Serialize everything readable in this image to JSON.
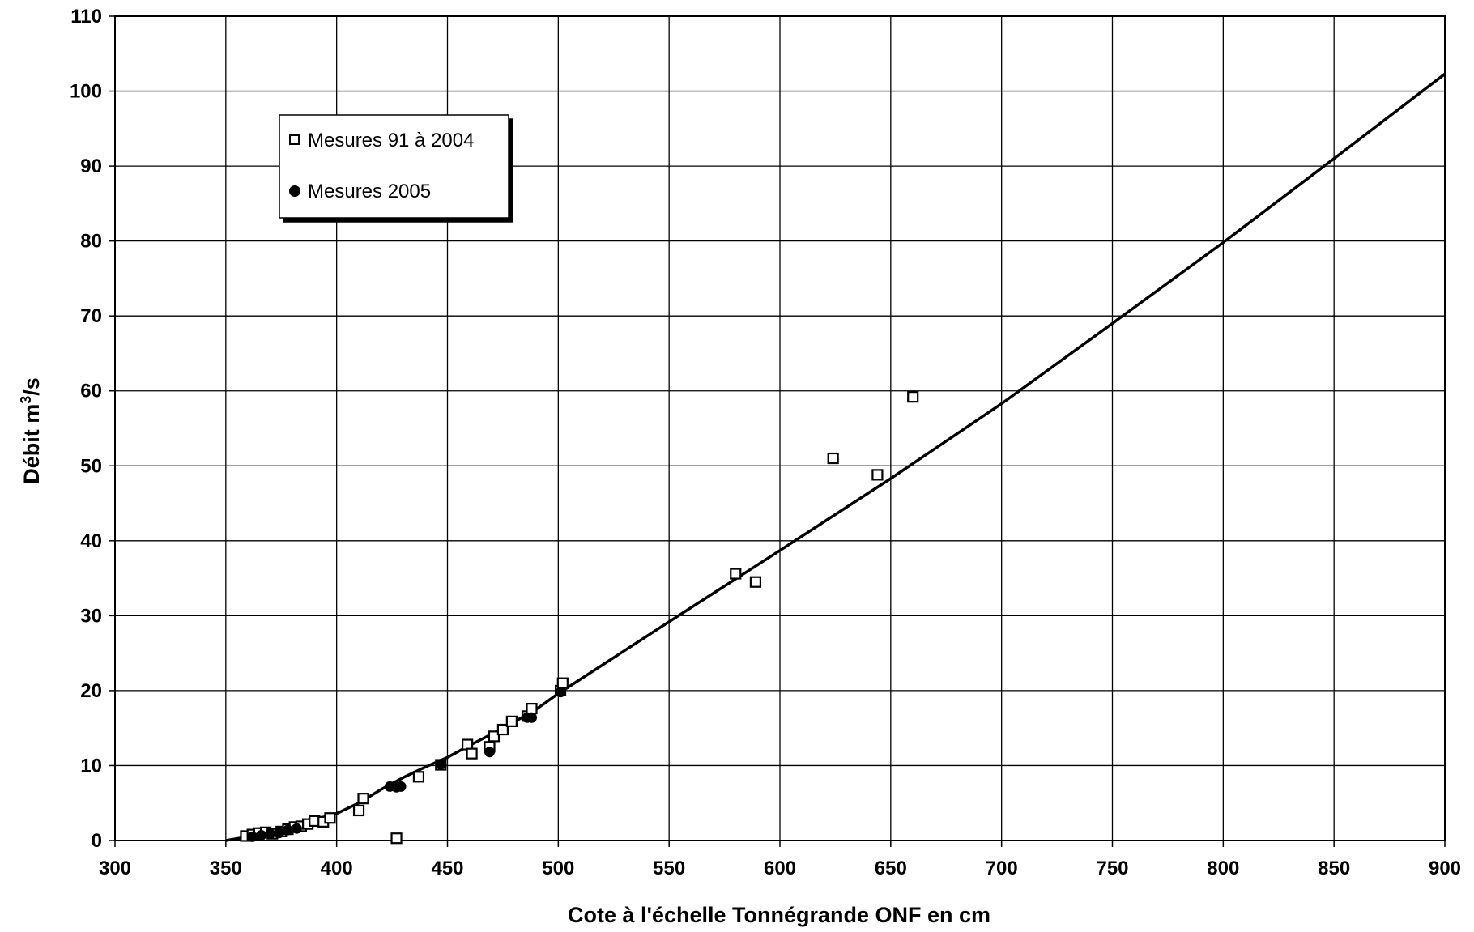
{
  "chart_data": {
    "type": "scatter",
    "title": "",
    "xlabel": "Cote à l'échelle Tonnégrande ONF en cm",
    "ylabel_main": "Débit m",
    "ylabel_sup": "3",
    "ylabel_tail": "/s",
    "xlim": [
      300,
      900
    ],
    "ylim": [
      0,
      110
    ],
    "x_ticks": [
      300,
      350,
      400,
      450,
      500,
      550,
      600,
      650,
      700,
      750,
      800,
      850,
      900
    ],
    "y_ticks": [
      0,
      10,
      20,
      30,
      40,
      50,
      60,
      70,
      80,
      90,
      100,
      110
    ],
    "grid": true,
    "legend_position": "top-left",
    "series": [
      {
        "name": "Mesures 91 à 2004",
        "marker": "open-square",
        "points": [
          [
            359,
            0.6
          ],
          [
            362,
            0.8
          ],
          [
            365,
            1.0
          ],
          [
            368,
            1.1
          ],
          [
            371,
            0.9
          ],
          [
            375,
            1.2
          ],
          [
            378,
            1.5
          ],
          [
            381,
            1.8
          ],
          [
            384,
            1.9
          ],
          [
            387,
            2.2
          ],
          [
            390,
            2.6
          ],
          [
            394,
            2.5
          ],
          [
            397,
            3.0
          ],
          [
            410,
            4.0
          ],
          [
            412,
            5.6
          ],
          [
            427,
            0.3
          ],
          [
            437,
            8.5
          ],
          [
            447,
            10.1
          ],
          [
            459,
            12.8
          ],
          [
            461,
            11.6
          ],
          [
            469,
            12.5
          ],
          [
            471,
            13.9
          ],
          [
            475,
            14.8
          ],
          [
            479,
            15.9
          ],
          [
            486,
            16.6
          ],
          [
            488,
            17.6
          ],
          [
            501,
            20.0
          ],
          [
            502,
            21.0
          ],
          [
            580,
            35.6
          ],
          [
            589,
            34.5
          ],
          [
            624,
            51.0
          ],
          [
            644,
            48.8
          ],
          [
            660,
            59.2
          ]
        ]
      },
      {
        "name": "Mesures 2005",
        "marker": "filled-circle",
        "points": [
          [
            362,
            0.5
          ],
          [
            366,
            0.7
          ],
          [
            370,
            0.9
          ],
          [
            374,
            1.0
          ],
          [
            378,
            1.4
          ],
          [
            382,
            1.6
          ],
          [
            424,
            7.2
          ],
          [
            427,
            7.1
          ],
          [
            429,
            7.2
          ],
          [
            447,
            10.2
          ],
          [
            469,
            11.8
          ],
          [
            486,
            16.4
          ],
          [
            488,
            16.4
          ],
          [
            501,
            19.8
          ]
        ]
      }
    ],
    "curve": {
      "name": "",
      "points": [
        [
          350,
          0
        ],
        [
          360,
          0.5
        ],
        [
          370,
          1.1
        ],
        [
          380,
          2.0
        ],
        [
          390,
          2.8
        ],
        [
          400,
          3.6
        ],
        [
          410,
          5.0
        ],
        [
          420,
          6.8
        ],
        [
          430,
          8.4
        ],
        [
          440,
          9.8
        ],
        [
          450,
          11.1
        ],
        [
          460,
          12.7
        ],
        [
          470,
          14.2
        ],
        [
          480,
          15.8
        ],
        [
          490,
          17.5
        ],
        [
          500,
          19.6
        ],
        [
          550,
          29.2
        ],
        [
          600,
          38.7
        ],
        [
          650,
          48.3
        ],
        [
          700,
          58.3
        ],
        [
          750,
          69.0
        ],
        [
          800,
          79.8
        ],
        [
          850,
          91.0
        ],
        [
          900,
          102.3
        ]
      ]
    }
  }
}
